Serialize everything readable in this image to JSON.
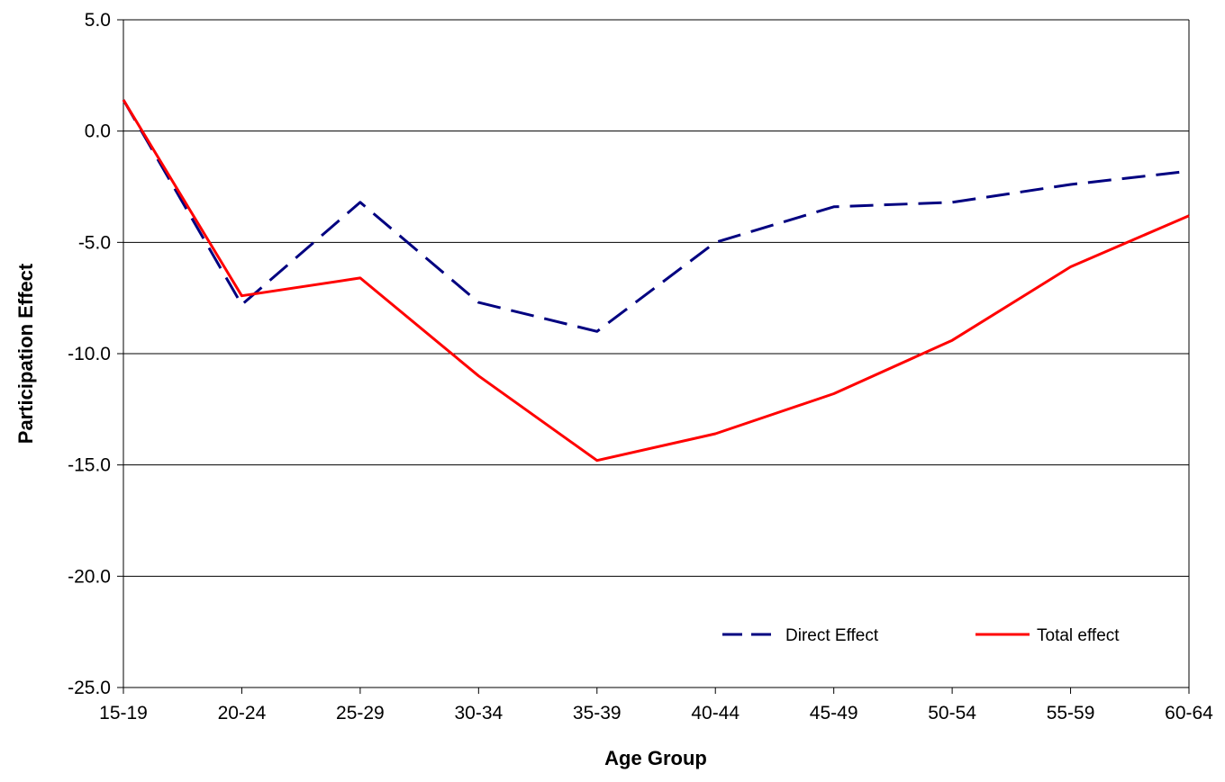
{
  "chart_data": {
    "type": "line",
    "title": "",
    "xlabel": "Age Group",
    "ylabel": "Participation Effect",
    "categories": [
      "15-19",
      "20-24",
      "25-29",
      "30-34",
      "35-39",
      "40-44",
      "45-49",
      "50-54",
      "55-59",
      "60-64"
    ],
    "ylim": [
      -25,
      5
    ],
    "yticks": [
      "5.0",
      "0.0",
      "-5.0",
      "-10.0",
      "-15.0",
      "-20.0",
      "-25.0"
    ],
    "ytick_values": [
      5,
      0,
      -5,
      -10,
      -15,
      -20,
      -25
    ],
    "grid": true,
    "legend_position": "bottom-right",
    "series": [
      {
        "name": "Direct Effect",
        "color": "#000080",
        "style": "dashed",
        "values": [
          1.4,
          -7.8,
          -3.2,
          -7.7,
          -9.0,
          -5.0,
          -3.4,
          -3.2,
          -2.4,
          -1.8
        ]
      },
      {
        "name": "Total effect",
        "color": "#ff0000",
        "style": "solid",
        "values": [
          1.4,
          -7.4,
          -6.6,
          -11.0,
          -14.8,
          -13.6,
          -11.8,
          -9.4,
          -6.1,
          -3.8
        ]
      }
    ]
  }
}
